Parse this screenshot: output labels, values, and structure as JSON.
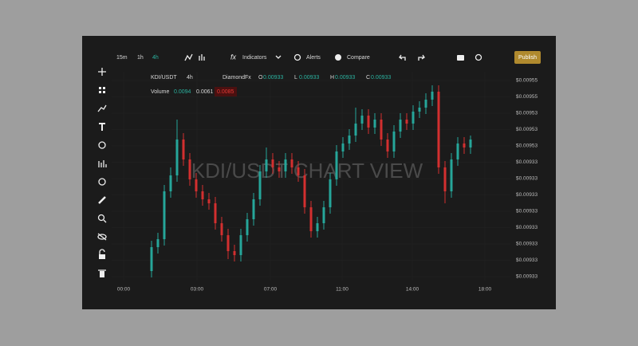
{
  "toolbar": {
    "intervals": [
      "15m",
      "1h",
      "4h"
    ],
    "indicators_icon": "fx",
    "indicators": "Indicators",
    "alerts": "Alerts",
    "compare": "Compare",
    "publish": "Publish"
  },
  "legend": {
    "symbol": "KDI/USDT",
    "interval": "4h",
    "source": "DiamondFx",
    "ohlc": [
      {
        "key": "O",
        "value": "0.00933"
      },
      {
        "key": "L",
        "value": "0.00933"
      },
      {
        "key": "H",
        "value": "0.00933"
      },
      {
        "key": "C",
        "value": "0.00933"
      }
    ],
    "volume": {
      "label": "Volume",
      "values": [
        "0.0094",
        "0.0061",
        "0.0085"
      ]
    }
  },
  "price_labels": [
    "$0.00955",
    "$0.00955",
    "$0.00953",
    "$0.00953",
    "$0.00953",
    "$0.00933",
    "$0.00933",
    "$0.00933",
    "$0.00933",
    "$0.00933",
    "$0.00933",
    "$0.00933",
    "$0.00933"
  ],
  "time_labels": [
    "00:00",
    "03:00",
    "07:00",
    "11:00",
    "14:00",
    "18:00"
  ],
  "watermark": "KDI/USDT CHART VIEW",
  "chart_data": {
    "type": "candlestick",
    "up_color": "#26a69a",
    "down_color": "#d32f2f",
    "ylim": [
      0,
      250
    ],
    "open": [
      10,
      40,
      50,
      110,
      130,
      175,
      150,
      125,
      110,
      100,
      95,
      70,
      55,
      35,
      30,
      55,
      75,
      100,
      135,
      150,
      140,
      135,
      150,
      140,
      130,
      90,
      60,
      70,
      90,
      125,
      160,
      170,
      180,
      195,
      205,
      190,
      200,
      175,
      160,
      185,
      200,
      195,
      210,
      215,
      225,
      235,
      140,
      110,
      150,
      170,
      165
    ],
    "high": [
      48,
      58,
      118,
      140,
      200,
      183,
      158,
      133,
      118,
      108,
      103,
      78,
      63,
      43,
      63,
      83,
      108,
      143,
      165,
      158,
      148,
      158,
      158,
      148,
      138,
      98,
      78,
      98,
      133,
      168,
      178,
      188,
      215,
      213,
      213,
      208,
      208,
      183,
      193,
      208,
      208,
      218,
      223,
      233,
      243,
      243,
      148,
      158,
      178,
      178,
      180
    ],
    "low": [
      2,
      32,
      42,
      102,
      122,
      142,
      117,
      102,
      92,
      87,
      62,
      47,
      25,
      22,
      22,
      47,
      67,
      92,
      127,
      132,
      127,
      127,
      132,
      122,
      82,
      52,
      52,
      62,
      82,
      117,
      152,
      162,
      172,
      187,
      182,
      182,
      167,
      152,
      152,
      177,
      187,
      187,
      202,
      207,
      217,
      132,
      95,
      102,
      142,
      157,
      157
    ],
    "close": [
      40,
      50,
      110,
      130,
      175,
      150,
      125,
      110,
      100,
      95,
      70,
      55,
      35,
      30,
      55,
      75,
      100,
      135,
      150,
      140,
      135,
      150,
      140,
      130,
      90,
      60,
      70,
      90,
      125,
      160,
      170,
      180,
      195,
      205,
      190,
      200,
      175,
      160,
      185,
      200,
      195,
      210,
      215,
      225,
      235,
      140,
      110,
      150,
      170,
      165,
      175
    ]
  }
}
